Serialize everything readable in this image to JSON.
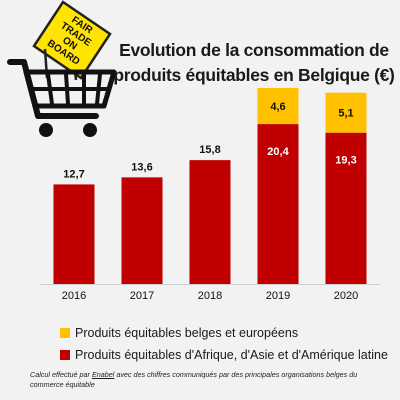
{
  "logo": {
    "sign_lines": [
      "FAIR",
      "TRADE",
      "ON",
      "BOARD"
    ],
    "sign_color": "#ffe400",
    "icon": "shopping-cart-icon"
  },
  "chart_data": {
    "type": "bar",
    "stacked": true,
    "title_lines": [
      "Evolution de la consommation de",
      "produits équitables en Belgique (€)"
    ],
    "categories": [
      "2016",
      "2017",
      "2018",
      "2019",
      "2020"
    ],
    "series": [
      {
        "name": "Produits équitables d'Afrique, d'Asie et d'Amérique latine",
        "color": "#c00000",
        "values": [
          12.7,
          13.6,
          15.8,
          20.4,
          19.3
        ],
        "labels": [
          "12,7",
          "13,6",
          "15,8",
          "20,4",
          "19,3"
        ]
      },
      {
        "name": "Produits équitables belges et européens",
        "color": "#ffc000",
        "values": [
          null,
          null,
          null,
          4.6,
          5.1
        ],
        "labels": [
          "",
          "",
          "",
          "4,6",
          "5,1"
        ]
      }
    ],
    "ylim": [
      0,
      25
    ],
    "grid": false,
    "legend_position": "bottom"
  },
  "footnote": {
    "before": "Calcul effectué par ",
    "link": "Enabel",
    "after": " avec des chiffres communiqués par des  principales organisations belges du commerce équitable"
  }
}
